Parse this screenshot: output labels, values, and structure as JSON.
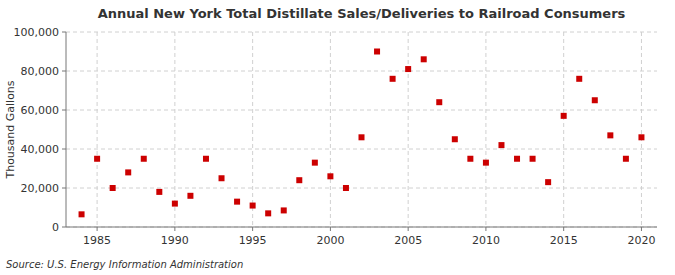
{
  "chart_data": {
    "type": "scatter",
    "title": "Annual New York Total Distillate Sales/Deliveries to Railroad Consumers",
    "ylabel": "Thousand Gallons",
    "source": "Source: U.S. Energy Information Administration",
    "color": "#cc0000",
    "marker": "square",
    "grid": true,
    "xlim": [
      1983,
      2021
    ],
    "ylim": [
      0,
      100000
    ],
    "xticks": [
      1985,
      1990,
      1995,
      2000,
      2005,
      2010,
      2015,
      2020
    ],
    "yticks": [
      0,
      {
        "value": 20000,
        "label": "20,000"
      },
      {
        "value": 40000,
        "label": "40,000"
      },
      {
        "value": 60000,
        "label": "60,000"
      },
      {
        "value": 80000,
        "label": "80,000"
      },
      {
        "value": 100000,
        "label": "100,000"
      }
    ],
    "x": [
      1984,
      1985,
      1986,
      1987,
      1988,
      1989,
      1990,
      1991,
      1992,
      1993,
      1994,
      1995,
      1996,
      1997,
      1998,
      1999,
      2000,
      2001,
      2002,
      2003,
      2004,
      2005,
      2006,
      2007,
      2008,
      2009,
      2010,
      2011,
      2012,
      2013,
      2014,
      2015,
      2016,
      2017,
      2018,
      2019,
      2020
    ],
    "values": [
      6500,
      35000,
      20000,
      28000,
      35000,
      18000,
      12000,
      16000,
      35000,
      25000,
      13000,
      11000,
      7000,
      8500,
      24000,
      33000,
      26000,
      20000,
      46000,
      90000,
      76000,
      81000,
      86000,
      64000,
      45000,
      35000,
      33000,
      42000,
      35000,
      35000,
      23000,
      57000,
      76000,
      65000,
      47000,
      35000,
      46000
    ]
  }
}
